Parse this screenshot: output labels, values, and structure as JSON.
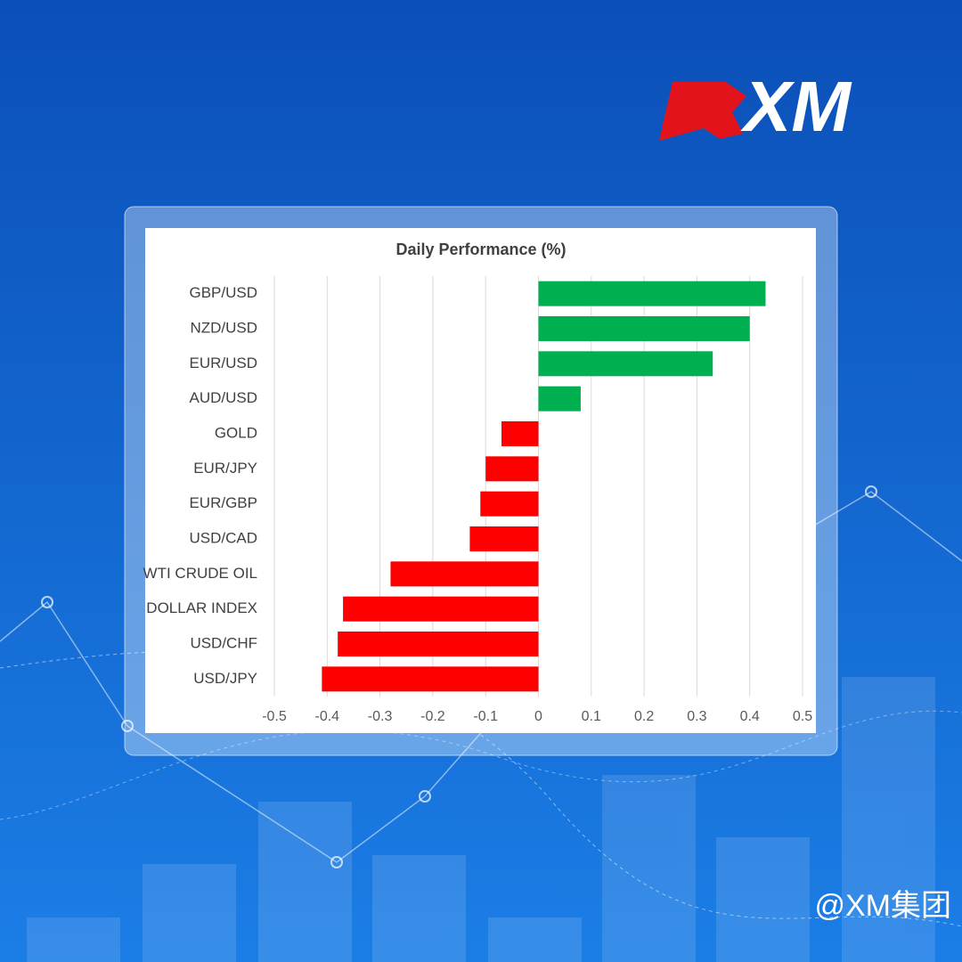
{
  "brand": {
    "logo": "XM",
    "watermark": "@XM集团"
  },
  "chart_data": {
    "type": "hbar",
    "title": "Daily Performance (%)",
    "categories": [
      "GBP/USD",
      "NZD/USD",
      "EUR/USD",
      "AUD/USD",
      "GOLD",
      "EUR/JPY",
      "EUR/GBP",
      "USD/CAD",
      "WTI CRUDE OIL",
      "DOLLAR INDEX",
      "USD/CHF",
      "USD/JPY"
    ],
    "values": [
      0.43,
      0.4,
      0.33,
      0.08,
      -0.07,
      -0.1,
      -0.11,
      -0.13,
      -0.28,
      -0.37,
      -0.38,
      -0.41
    ],
    "positive_color": "#00b050",
    "negative_color": "#ff0000",
    "xlim": [
      -0.5,
      0.5
    ],
    "xticks": [
      -0.5,
      -0.4,
      -0.3,
      -0.2,
      -0.1,
      0,
      0.1,
      0.2,
      0.3,
      0.4,
      0.5
    ],
    "grid": true
  }
}
